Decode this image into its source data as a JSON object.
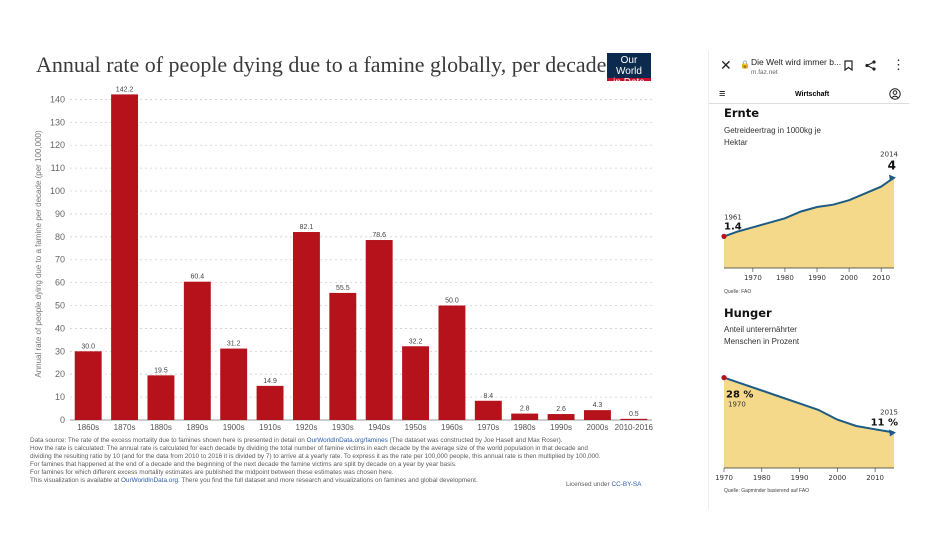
{
  "main_chart": {
    "title": "Annual rate of people dying due to a famine globally, per decade",
    "logo_line1": "Our World",
    "logo_line2": "in Data",
    "footer": {
      "line1_a": "Data source: The rate of the excess mortality due to famines shown here is presented in detail on ",
      "line1_link": "OurWorldInData.org/famines",
      "line1_b": " (The dataset was constructed by Joe Hasell and Max Roser).",
      "line2": "How the rate is calculated: The annual rate is calculated for each decade by dividing the total number of famine victims in each decade by the average size of the world population in that decade and",
      "line3": "dividing the resulting ratio by 10 (and for the data from 2010 to 2016 it is divided by 7) to arrive at a yearly rate. To express it as the rate per 100,000 people, this annual rate is then multiplied by 100,000.",
      "line4": "For famines that happened at the end of a decade and the beginning of the next decade the famine victims are split by decade on a year by year basis.",
      "line5": "For famines for which different excess mortality estimates are published the midpoint between these estimates was chosen here.",
      "line6_a": "This visualization is available at ",
      "line6_link": "OurWorldInData.org",
      "line6_b": ". There you find the full dataset and more research and visualizations on famines and global development.",
      "license_a": "Licensed under ",
      "license_link": "CC-BY-SA"
    }
  },
  "chart_data": [
    {
      "type": "bar",
      "title": "Annual rate of people dying due to a famine globally, per decade",
      "ylabel": "Annual rate of people dying due to a famine per decade (per 100,000)",
      "xlabel": "",
      "ylim": [
        0,
        145
      ],
      "yticks": [
        0,
        10,
        20,
        30,
        40,
        50,
        60,
        70,
        80,
        90,
        100,
        110,
        120,
        130,
        140
      ],
      "grid": true,
      "bar_color": "#b5121b",
      "categories": [
        "1860s",
        "1870s",
        "1880s",
        "1890s",
        "1900s",
        "1910s",
        "1920s",
        "1930s",
        "1940s",
        "1950s",
        "1960s",
        "1970s",
        "1980s",
        "1990s",
        "2000s",
        "2010-2016"
      ],
      "values": [
        30.0,
        142.2,
        19.5,
        60.4,
        31.2,
        14.9,
        82.1,
        55.5,
        78.6,
        32.2,
        50.0,
        8.4,
        2.8,
        2.6,
        4.3,
        0.5
      ],
      "data_labels": [
        "30.0",
        "142.2",
        "19.5",
        "60.4",
        "31.2",
        "14.9",
        "82.1",
        "55.5",
        "78.6",
        "32.2",
        "50.0",
        "8.4",
        "2.8",
        "2.6",
        "4.3",
        "0.5"
      ]
    },
    {
      "type": "area",
      "title": "Ernte",
      "subtitle": "Getreideertrag in 1000kg je Hektar",
      "xlim": [
        1961,
        2014
      ],
      "xticks": [
        1970,
        1980,
        1990,
        2000,
        2010
      ],
      "ylim": [
        0,
        5
      ],
      "x": [
        1961,
        1965,
        1970,
        1975,
        1980,
        1985,
        1990,
        1995,
        2000,
        2005,
        2010,
        2014
      ],
      "y": [
        1.4,
        1.6,
        1.8,
        2.0,
        2.2,
        2.5,
        2.7,
        2.8,
        3.0,
        3.3,
        3.6,
        4.0
      ],
      "start_year_label": "1961",
      "start_value_label": "1.4",
      "end_year_label": "2014",
      "end_value_label": "4",
      "source": "Quelle: FAO",
      "fill_color": "#f4d98a",
      "line_color": "#1d5b83"
    },
    {
      "type": "area",
      "title": "Hunger",
      "subtitle": "Anteil unterernährter Menschen in Prozent",
      "xlim": [
        1970,
        2015
      ],
      "xticks": [
        1970,
        1980,
        1990,
        2000,
        2010
      ],
      "ylim": [
        0,
        35
      ],
      "x": [
        1970,
        1975,
        1980,
        1985,
        1990,
        1995,
        2000,
        2005,
        2010,
        2015
      ],
      "y": [
        28,
        26,
        24,
        22,
        20,
        18,
        15,
        13,
        12,
        11
      ],
      "start_year_label": "1970",
      "start_value_label": "28 %",
      "end_year_label": "2015",
      "end_value_label": "11 %",
      "source": "Quelle: Gapminder basierend auf FAO",
      "fill_color": "#f4d98a",
      "line_color": "#1d5b83"
    }
  ],
  "phone": {
    "page_title": "Die Welt wird immer b...",
    "host": "m.faz.net",
    "section": "Wirtschaft",
    "icons": {
      "close": "close-icon",
      "lock": "lock-icon",
      "bookmark": "bookmark-icon",
      "share": "share-icon",
      "more": "more-vert-icon",
      "menu": "hamburger-menu-icon",
      "user": "user-icon"
    }
  }
}
